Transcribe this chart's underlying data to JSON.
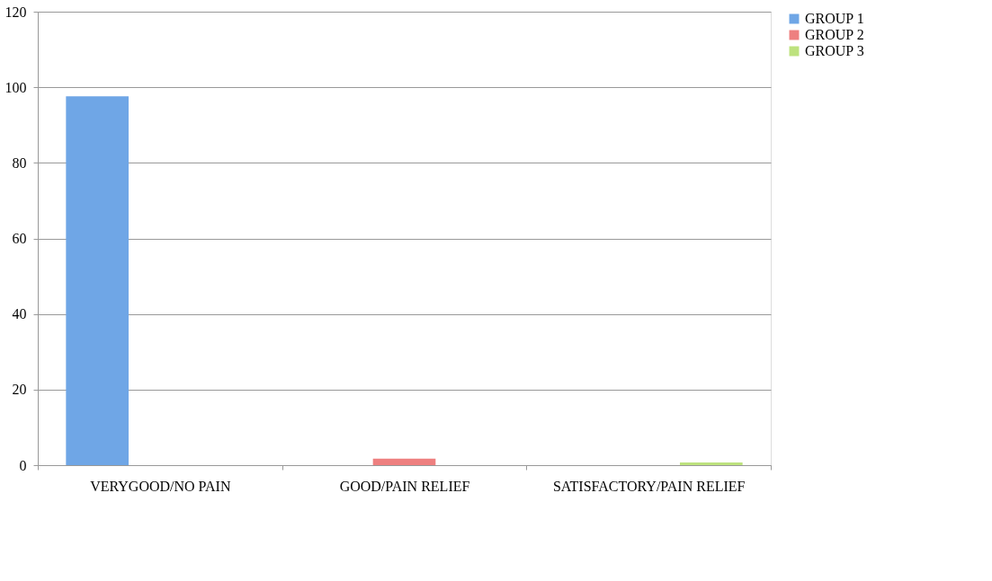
{
  "chart_data": {
    "type": "bar",
    "categories": [
      "VERYGOOD/NO PAIN",
      "GOOD/PAIN RELIEF",
      "SATISFACTORY/PAIN RELIEF"
    ],
    "series": [
      {
        "name": "GROUP 1",
        "color": "#6fa6e6",
        "values": [
          97.6,
          0,
          0
        ]
      },
      {
        "name": "GROUP 2",
        "color": "#ee8080",
        "values": [
          0,
          1.7,
          0
        ]
      },
      {
        "name": "GROUP 3",
        "color": "#bde27e",
        "values": [
          0,
          0,
          0.7
        ]
      }
    ],
    "ylim": [
      0,
      120
    ],
    "yticks": [
      0,
      20,
      40,
      60,
      80,
      100,
      120
    ],
    "grid": "y",
    "legend": "right"
  }
}
